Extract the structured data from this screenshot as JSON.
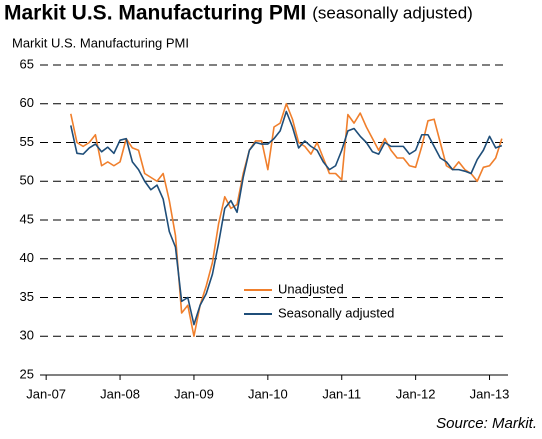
{
  "chart_data": {
    "type": "line",
    "title": "Markit U.S. Manufacturing PMI",
    "subtitle": "(seasonally adjusted)",
    "y_label": "Markit U.S. Manufacturing PMI",
    "source": "Source: Markit.",
    "x": [
      "2007-05",
      "2007-06",
      "2007-07",
      "2007-08",
      "2007-09",
      "2007-10",
      "2007-11",
      "2007-12",
      "2008-01",
      "2008-02",
      "2008-03",
      "2008-04",
      "2008-05",
      "2008-06",
      "2008-07",
      "2008-08",
      "2008-09",
      "2008-10",
      "2008-11",
      "2008-12",
      "2009-01",
      "2009-02",
      "2009-03",
      "2009-04",
      "2009-05",
      "2009-06",
      "2009-07",
      "2009-08",
      "2009-09",
      "2009-10",
      "2009-11",
      "2009-12",
      "2010-01",
      "2010-02",
      "2010-03",
      "2010-04",
      "2010-05",
      "2010-06",
      "2010-07",
      "2010-08",
      "2010-09",
      "2010-10",
      "2010-11",
      "2010-12",
      "2011-01",
      "2011-02",
      "2011-03",
      "2011-04",
      "2011-05",
      "2011-06",
      "2011-07",
      "2011-08",
      "2011-09",
      "2011-10",
      "2011-11",
      "2011-12",
      "2012-01",
      "2012-02",
      "2012-03",
      "2012-04",
      "2012-05",
      "2012-06",
      "2012-07",
      "2012-08",
      "2012-09",
      "2012-10",
      "2012-11",
      "2012-12",
      "2013-01",
      "2013-02",
      "2013-03"
    ],
    "series": [
      {
        "name": "Unadjusted",
        "color": "#f07f2c",
        "values": [
          58.7,
          55.0,
          54.5,
          55.0,
          56.0,
          52.0,
          52.5,
          52.0,
          52.5,
          55.5,
          54.3,
          54.0,
          51.0,
          50.5,
          50.0,
          51.0,
          47.5,
          43.0,
          33.0,
          34.0,
          30.0,
          34.0,
          36.5,
          39.5,
          44.5,
          48.0,
          46.5,
          47.0,
          51.0,
          54.0,
          55.2,
          55.2,
          51.5,
          57.0,
          57.5,
          60.0,
          58.0,
          55.0,
          54.5,
          53.5,
          55.0,
          53.0,
          51.0,
          51.0,
          50.2,
          58.6,
          57.5,
          58.8,
          57.0,
          55.5,
          54.0,
          55.5,
          54.0,
          53.0,
          53.0,
          52.0,
          51.8,
          54.5,
          57.8,
          58.0,
          55.0,
          52.0,
          51.5,
          52.5,
          51.5,
          51.0,
          50.0,
          51.8,
          52.0,
          53.0,
          55.5
        ]
      },
      {
        "name": "Seasonally adjusted",
        "color": "#1f4e79",
        "values": [
          57.2,
          53.6,
          53.5,
          54.3,
          54.8,
          53.8,
          54.4,
          53.6,
          55.3,
          55.5,
          52.5,
          51.5,
          50.0,
          48.9,
          49.5,
          47.7,
          43.5,
          41.5,
          34.5,
          35.0,
          31.5,
          34.0,
          35.5,
          38.0,
          42.0,
          46.5,
          47.5,
          46.0,
          50.5,
          54.0,
          55.0,
          54.8,
          54.8,
          55.5,
          56.5,
          59.0,
          57.0,
          54.3,
          55.2,
          54.5,
          54.0,
          52.5,
          51.5,
          52.0,
          54.0,
          56.5,
          56.8,
          55.8,
          55.0,
          53.8,
          53.5,
          55.0,
          54.5,
          54.5,
          54.5,
          53.5,
          54.0,
          56.0,
          56.0,
          54.5,
          53.0,
          52.5,
          51.5,
          51.5,
          51.3,
          51.0,
          52.8,
          54.0,
          55.8,
          54.3,
          54.6
        ]
      }
    ],
    "xlim": [
      "2006-12",
      "2013-04"
    ],
    "xticks": [
      {
        "value": "2007-01",
        "label": "Jan-07"
      },
      {
        "value": "2008-01",
        "label": "Jan-08"
      },
      {
        "value": "2009-01",
        "label": "Jan-09"
      },
      {
        "value": "2010-01",
        "label": "Jan-10"
      },
      {
        "value": "2011-01",
        "label": "Jan-11"
      },
      {
        "value": "2012-01",
        "label": "Jan-12"
      },
      {
        "value": "2013-01",
        "label": "Jan-13"
      }
    ],
    "ylim": [
      25,
      65
    ],
    "yticks": [
      25,
      30,
      35,
      40,
      45,
      50,
      55,
      60,
      65
    ],
    "grid": true,
    "legend": "bottom-center"
  }
}
